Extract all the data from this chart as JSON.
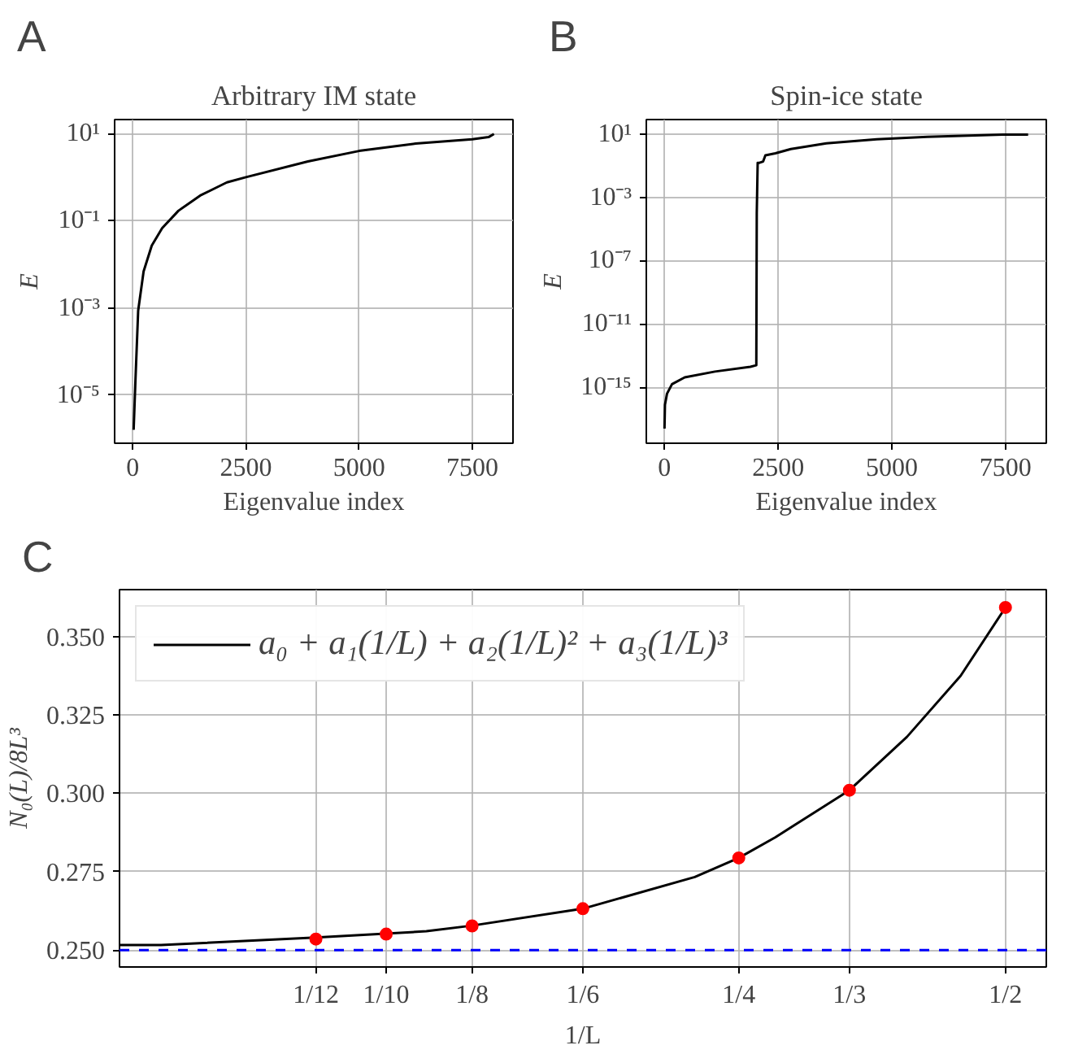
{
  "chart_data": [
    {
      "type": "line",
      "annotations": [
        "A"
      ],
      "title": "Arbitrary IM state",
      "xlabel": "Eigenvalue index",
      "ylabel": "E",
      "log": "y",
      "grid": true,
      "x": [
        20,
        60,
        120,
        240,
        420,
        650,
        1010,
        1490,
        2080,
        2500,
        3870,
        5000,
        6250,
        7500,
        7860,
        7980
      ],
      "series": [
        {
          "color": "#000000",
          "values": [
            1.6e-06,
            2.2e-05,
            0.00087,
            0.0069,
            0.027,
            0.068,
            0.17,
            0.38,
            0.76,
            1.0,
            2.3,
            4.0,
            5.9,
            7.4,
            8.3,
            9.8
          ]
        }
      ],
      "xlim": [
        -400,
        8400
      ],
      "ylim": [
        7.9e-07,
        21
      ],
      "xticks": [
        0,
        2500,
        5000,
        7500
      ],
      "yticks": [
        {
          "value": 10,
          "label": "10¹"
        },
        {
          "value": 0.1,
          "label": "10⁻¹"
        },
        {
          "value": 0.001,
          "label": "10⁻³"
        },
        {
          "value": 1e-05,
          "label": "10⁻⁵"
        }
      ]
    },
    {
      "type": "line",
      "annotations": [
        "B"
      ],
      "title": "Spin-ice state",
      "xlabel": "Eigenvalue index",
      "ylabel": "E",
      "log": "y",
      "grid": true,
      "x": [
        0,
        10,
        55,
        165,
        445,
        1110,
        1890,
        2020,
        2030,
        2050,
        2090,
        2170,
        2220,
        2440,
        2780,
        3560,
        4670,
        5780,
        7440,
        8000
      ],
      "series": [
        {
          "color": "#000000",
          "values": [
            2.5e-18,
            8e-17,
            4e-16,
            1.6e-15,
            4.3e-15,
            1e-14,
            2e-14,
            2.5e-14,
            0.0001,
            0.15,
            0.15,
            0.18,
            0.44,
            0.59,
            1.1,
            2.5,
            4.5,
            6.5,
            8.9,
            9.1
          ]
        }
      ],
      "xlim": [
        -400,
        8400
      ],
      "ylim": [
        3e-19,
        80
      ],
      "xticks": [
        0,
        2500,
        5000,
        7500
      ],
      "yticks": [
        {
          "value": 10,
          "label": "10¹"
        },
        {
          "value": 0.001,
          "label": "10⁻³"
        },
        {
          "value": 1e-07,
          "label": "10⁻⁷"
        },
        {
          "value": 1e-11,
          "label": "10⁻¹¹"
        },
        {
          "value": 1e-15,
          "label": "10⁻¹⁵"
        }
      ]
    },
    {
      "type": "line",
      "annotations": [
        "C"
      ],
      "xlabel": "1/L",
      "ylabel": "N₀(L)/8L³",
      "log": "x",
      "grid": true,
      "legend": "top left",
      "series": [
        {
          "name": "a₀ + a₁(1/L) + a₂(1/L)² + a₃(1/L)³",
          "type": "line",
          "color": "#000000",
          "x": [
            0.05,
            0.0557,
            0.0833,
            0.111,
            0.125,
            0.1667,
            0.223,
            0.25,
            0.275,
            0.3333,
            0.387,
            0.445,
            0.5
          ],
          "values": [
            0.2516,
            0.2516,
            0.254,
            0.256,
            0.2578,
            0.2632,
            0.2733,
            0.2794,
            0.286,
            0.301,
            0.318,
            0.3375,
            0.3593
          ]
        },
        {
          "type": "scatter",
          "marker": "circle",
          "color": "#ff0000",
          "x": [
            0.0833,
            0.1,
            0.125,
            0.1667,
            0.25,
            0.3333,
            0.5
          ],
          "values": [
            0.2535,
            0.2551,
            0.2577,
            0.2632,
            0.2794,
            0.301,
            0.3593
          ]
        }
      ],
      "ref_lines": [
        {
          "axis": "y",
          "value": 0.25,
          "color": "#0000ff",
          "line_style": "dashed"
        }
      ],
      "xlim": [
        0.05,
        0.556
      ],
      "ylim": [
        0.2446,
        0.365
      ],
      "xticks": [
        {
          "value": 0.0833,
          "label": "1/12"
        },
        {
          "value": 0.1,
          "label": "1/10"
        },
        {
          "value": 0.125,
          "label": "1/8"
        },
        {
          "value": 0.1667,
          "label": "1/6"
        },
        {
          "value": 0.25,
          "label": "1/4"
        },
        {
          "value": 0.3333,
          "label": "1/3"
        },
        {
          "value": 0.5,
          "label": "1/2"
        }
      ],
      "yticks": [
        {
          "value": 0.25,
          "label": "0.250"
        },
        {
          "value": 0.275,
          "label": "0.275"
        },
        {
          "value": 0.3,
          "label": "0.300"
        },
        {
          "value": 0.325,
          "label": "0.325"
        },
        {
          "value": 0.35,
          "label": "0.350"
        }
      ]
    }
  ]
}
